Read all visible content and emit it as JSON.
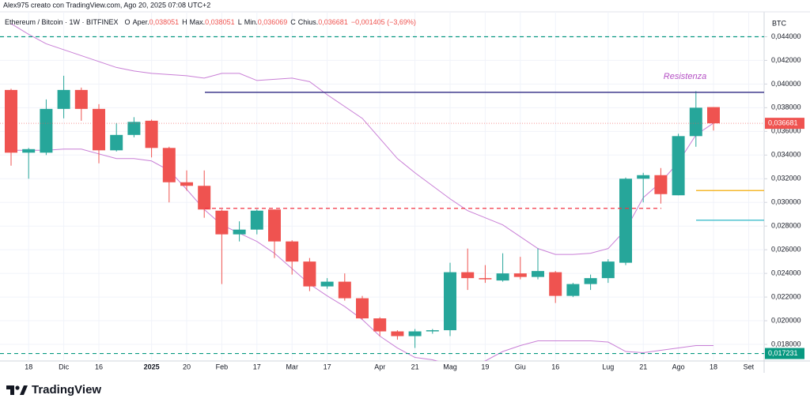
{
  "header": "Alex975 creato con TradingView.com, Ago 20, 2025 07:08 UTC+2",
  "footer": {
    "brand": "TradingView"
  },
  "chart_data": {
    "type": "candlestick",
    "symbol": "Ethereum / Bitcoin · 1W · BITFINEX",
    "ohlc_legend": [
      {
        "key": "O",
        "name": "Aper.",
        "value": "0,038051"
      },
      {
        "key": "H",
        "name": "Max.",
        "value": "0,038051"
      },
      {
        "key": "L",
        "name": "Min.",
        "value": "0,036069"
      },
      {
        "key": "C",
        "name": "Chius.",
        "value": "0,036681"
      }
    ],
    "change": "−0,001405 (−3,69%)",
    "axis_unit": "BTC",
    "up_color": "#26a69a",
    "down_color": "#ef5350",
    "categories": [
      null,
      "18",
      null,
      "Dic",
      null,
      "16",
      null,
      null,
      "2025",
      null,
      "20",
      null,
      "Feb",
      null,
      "17",
      null,
      "Mar",
      null,
      "17",
      null,
      null,
      "Apr",
      null,
      "21",
      null,
      "Mag",
      null,
      "19",
      null,
      "Giu",
      null,
      "16",
      null,
      null,
      "Lug",
      null,
      "21",
      null,
      "Ago",
      null,
      "18",
      null,
      "Set"
    ],
    "open": [
      0.0395,
      0.0342,
      0.0342,
      0.0379,
      0.0395,
      0.0379,
      0.0344,
      0.0357,
      0.0369,
      0.0346,
      0.0317,
      0.0314,
      0.0293,
      0.0273,
      0.0277,
      0.0294,
      0.0267,
      0.025,
      0.0229,
      0.0233,
      0.0219,
      0.0202,
      0.0191,
      0.0187,
      0.0191,
      0.0192,
      0.0241,
      0.0236,
      0.0234,
      0.024,
      0.0237,
      0.0241,
      0.0221,
      0.0231,
      0.0236,
      0.0249,
      0.032,
      0.0323,
      0.0306,
      0.0356,
      0.038051,
      null,
      null
    ],
    "high": [
      0.0396,
      0.0346,
      0.0387,
      0.0407,
      0.0397,
      0.0383,
      0.0367,
      0.0372,
      0.037,
      0.0347,
      0.0327,
      0.0327,
      0.0294,
      0.0284,
      0.0294,
      0.0294,
      0.0268,
      0.0253,
      0.0236,
      0.024,
      0.0221,
      0.0203,
      0.0192,
      0.0193,
      0.0193,
      0.0249,
      0.0261,
      0.0247,
      0.0257,
      0.0254,
      0.0261,
      0.0242,
      0.0232,
      0.0239,
      0.0252,
      0.0321,
      0.0325,
      0.0329,
      0.0358,
      0.0394,
      0.038051,
      null,
      null
    ],
    "low": [
      0.0331,
      0.032,
      0.034,
      0.0371,
      0.0369,
      0.0333,
      0.0343,
      0.0355,
      0.0338,
      0.03,
      0.031,
      0.0287,
      0.0231,
      0.0267,
      0.0273,
      0.0253,
      0.0239,
      0.0225,
      0.0227,
      0.0217,
      0.0201,
      0.0187,
      0.0184,
      0.0177,
      0.0189,
      0.0187,
      0.0226,
      0.0232,
      0.0233,
      0.0235,
      0.0235,
      0.0215,
      0.022,
      0.0226,
      0.0232,
      0.0247,
      0.03,
      0.0299,
      0.0306,
      0.0347,
      0.036069,
      null,
      null
    ],
    "close": [
      0.0342,
      0.0345,
      0.0379,
      0.0395,
      0.0379,
      0.0344,
      0.0357,
      0.0368,
      0.0346,
      0.0317,
      0.0314,
      0.0294,
      0.0273,
      0.0277,
      0.0293,
      0.0267,
      0.025,
      0.0229,
      0.0233,
      0.0219,
      0.0202,
      0.0191,
      0.0187,
      0.0191,
      0.0192,
      0.0241,
      0.0236,
      0.0235,
      0.024,
      0.0237,
      0.0242,
      0.0221,
      0.0231,
      0.0236,
      0.025,
      0.032,
      0.0323,
      0.0307,
      0.0356,
      0.038,
      0.036681,
      null,
      null
    ],
    "last_price_label": "0,036681",
    "bands": [
      {
        "color": "#c97fd6",
        "values": [
          0.0451,
          0.0442,
          0.0434,
          0.0429,
          0.0424,
          0.0419,
          0.0414,
          0.0411,
          0.0409,
          0.0408,
          0.0407,
          0.0405,
          0.0409,
          0.0409,
          0.0403,
          0.0404,
          0.0405,
          0.0402,
          0.0391,
          0.0381,
          0.0371,
          0.0354,
          0.0337,
          0.0325,
          0.0314,
          0.0303,
          0.0293,
          0.0287,
          0.0281,
          0.0271,
          0.0261,
          0.0256,
          0.0256,
          0.0257,
          0.0261,
          0.0277,
          0.0304,
          0.0317,
          0.0334,
          0.0357,
          0.0367,
          null,
          null
        ]
      },
      {
        "color": "#c97fd6",
        "values": [
          0.0344,
          0.0344,
          0.0344,
          0.0345,
          0.0345,
          0.0341,
          0.0337,
          0.0337,
          0.0335,
          0.0327,
          0.0311,
          0.0294,
          0.0281,
          0.0274,
          0.0267,
          0.0257,
          0.0244,
          0.0231,
          0.0221,
          0.0212,
          0.0201,
          0.0187,
          0.0177,
          0.0169,
          0.0167,
          0.0163,
          0.0162,
          0.0166,
          0.0174,
          0.0179,
          0.0183,
          0.0183,
          0.0183,
          0.0183,
          0.0182,
          0.0174,
          0.0173,
          0.0175,
          0.0177,
          0.0179,
          0.0179,
          null,
          null
        ]
      }
    ],
    "levels": [
      {
        "value": 0.044,
        "color": "#089981",
        "style": "dashed"
      },
      {
        "value": 0.017231,
        "label": "0,017231",
        "color": "#089981",
        "style": "dashed"
      },
      {
        "value": 0.0295,
        "color": "#f23645",
        "style": "dashed"
      },
      {
        "value": 0.0393,
        "color": "#3f3a8c",
        "style": "solid"
      },
      {
        "value": 0.031,
        "color": "#f5b82e",
        "style": "solid"
      },
      {
        "value": 0.0285,
        "color": "#4fc3d0",
        "style": "solid"
      }
    ],
    "annotations": [
      {
        "text": "Resistenza",
        "color": "#b44fc4"
      }
    ],
    "ylim": [
      0.0166,
      0.0461
    ],
    "yticks": [
      {
        "value": 0.018,
        "label": "0,018000"
      },
      {
        "value": 0.02,
        "label": "0,020000"
      },
      {
        "value": 0.022,
        "label": "0,022000"
      },
      {
        "value": 0.024,
        "label": "0,024000"
      },
      {
        "value": 0.026,
        "label": "0,026000"
      },
      {
        "value": 0.028,
        "label": "0,028000"
      },
      {
        "value": 0.03,
        "label": "0,030000"
      },
      {
        "value": 0.032,
        "label": "0,032000"
      },
      {
        "value": 0.034,
        "label": "0,034000"
      },
      {
        "value": 0.036,
        "label": "0,036000"
      },
      {
        "value": 0.038,
        "label": "0,038000"
      },
      {
        "value": 0.04,
        "label": "0,040000"
      },
      {
        "value": 0.042,
        "label": "0,042000"
      },
      {
        "value": 0.044,
        "label": "0,044000"
      }
    ],
    "grid": true
  }
}
